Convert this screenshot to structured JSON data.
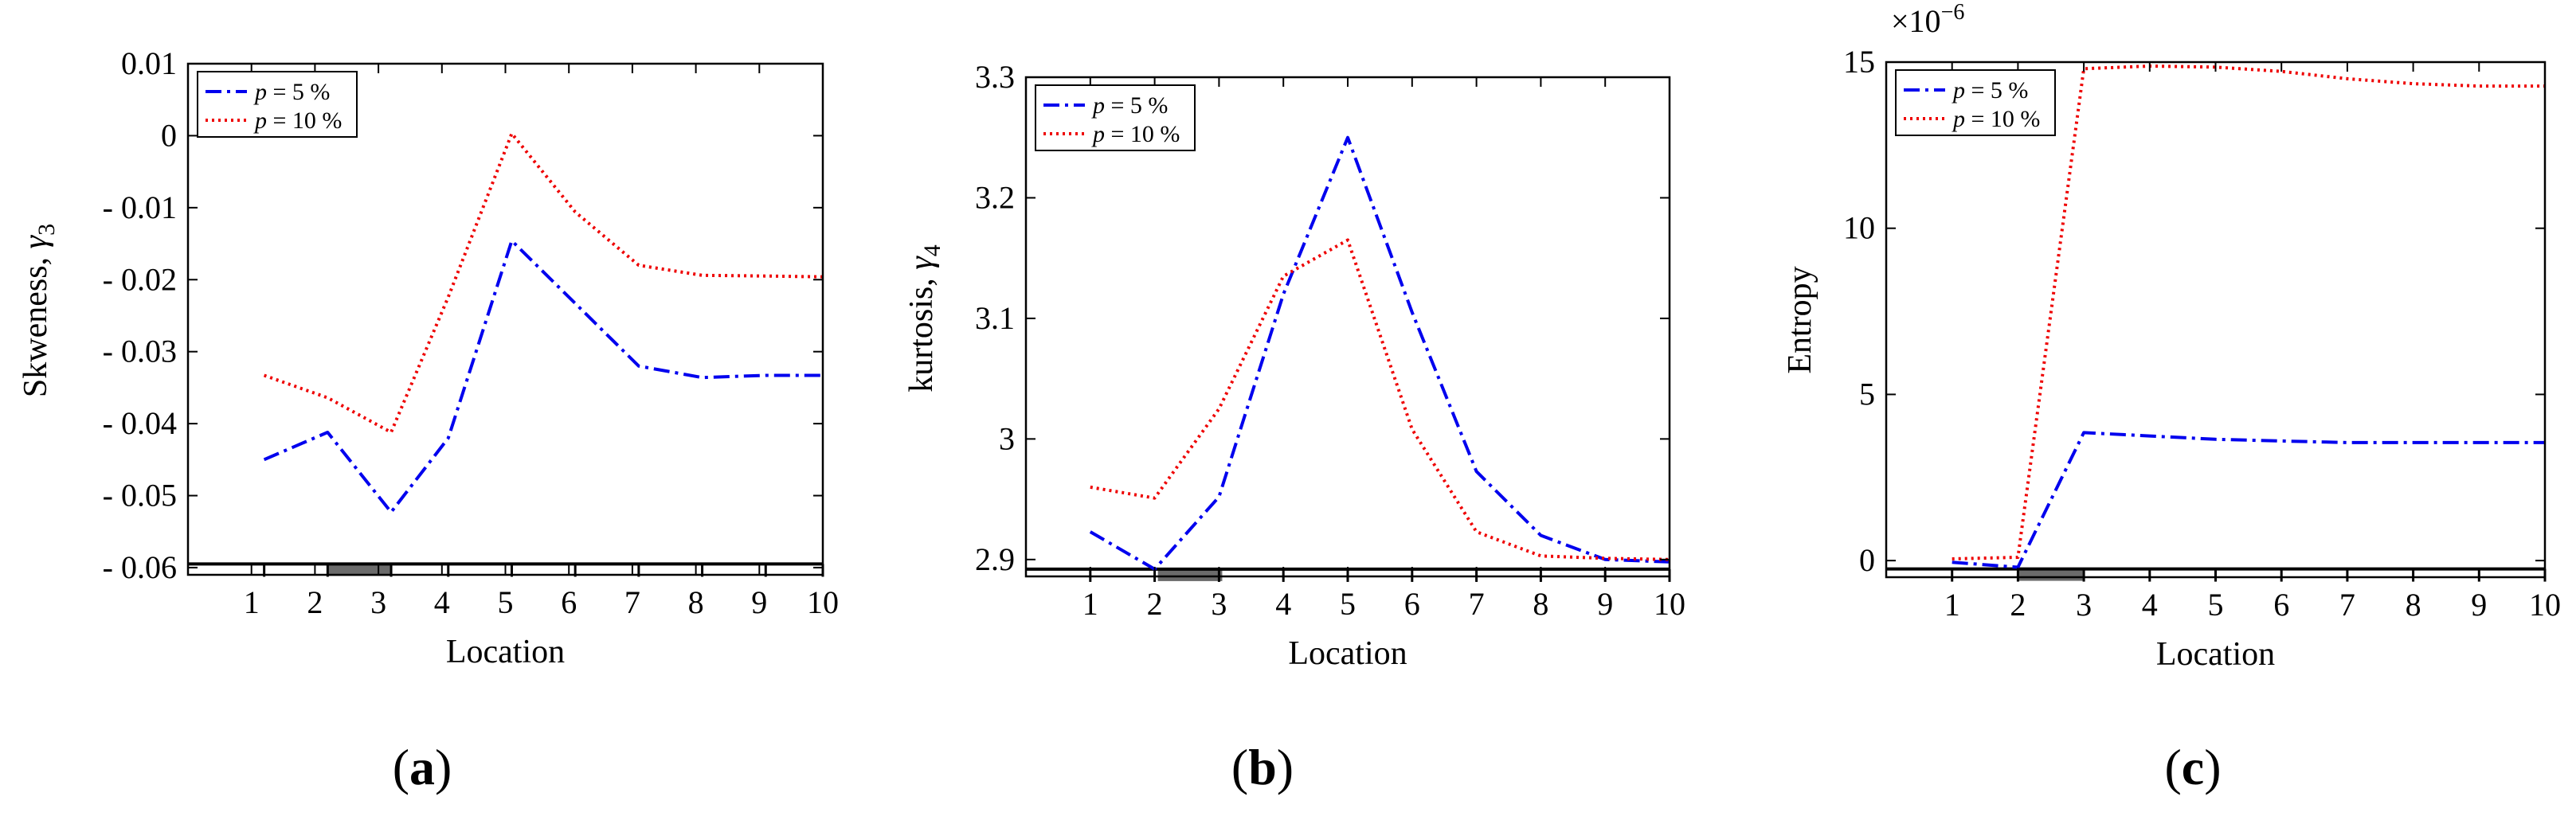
{
  "chart_data": [
    {
      "type": "line",
      "panel_label": "a",
      "title": "",
      "xlabel": "Location",
      "ylabel_main": "Skweness, ",
      "ylabel_sym": "γ",
      "ylabel_sub": "3",
      "xlim": [
        0,
        10
      ],
      "ylim": [
        -0.061,
        0.01
      ],
      "x_ticks": [
        1,
        2,
        3,
        4,
        5,
        6,
        7,
        8,
        9,
        10
      ],
      "y_ticks": [
        0.01,
        0,
        -0.01,
        -0.02,
        -0.03,
        -0.04,
        -0.05,
        -0.06
      ],
      "y_tick_labels": [
        "0.01",
        "0",
        "- 0.01",
        "- 0.02",
        "- 0.03",
        "- 0.04",
        "- 0.05",
        "- 0.06"
      ],
      "baseline": -0.0595,
      "shaded_interval": [
        2.2,
        3.2
      ],
      "legend_position": "top-left",
      "series": [
        {
          "name": "p = 5 %",
          "var": "p",
          "rest": " = 5 %",
          "color": "#0000ee",
          "dash": "20,7,4,7",
          "x": [
            1.2,
            2.2,
            3.2,
            4.1,
            5.1,
            6.1,
            7.1,
            8.1,
            9.1,
            10
          ],
          "y": [
            -0.045,
            -0.0412,
            -0.0523,
            -0.042,
            -0.0146,
            -0.0233,
            -0.032,
            -0.0336,
            -0.0333,
            -0.0333
          ]
        },
        {
          "name": "p = 10 %",
          "var": "p",
          "rest": " = 10 %",
          "color": "#ee0000",
          "dash": "3,5",
          "x": [
            1.2,
            2.2,
            3.2,
            4.1,
            5.1,
            6.1,
            7.1,
            8.1,
            9.1,
            10
          ],
          "y": [
            -0.0333,
            -0.0364,
            -0.0412,
            -0.0224,
            0.0003,
            -0.0106,
            -0.018,
            -0.0194,
            -0.0195,
            -0.0196
          ]
        }
      ]
    },
    {
      "type": "line",
      "panel_label": "b",
      "title": "",
      "xlabel": "Location",
      "ylabel_main": "kurtosis, ",
      "ylabel_sym": "γ",
      "ylabel_sub": "4",
      "xlim": [
        0,
        10
      ],
      "ylim": [
        2.886,
        3.3
      ],
      "x_ticks": [
        1,
        2,
        3,
        4,
        5,
        6,
        7,
        8,
        9,
        10
      ],
      "y_ticks": [
        3.3,
        3.2,
        3.1,
        3,
        2.9
      ],
      "y_tick_labels": [
        "3.3",
        "3.2",
        "3.1",
        "3",
        "2.9"
      ],
      "baseline": 2.892,
      "shaded_interval": [
        2.05,
        3.05
      ],
      "legend_position": "top-left",
      "series": [
        {
          "name": "p = 5 %",
          "var": "p",
          "rest": " = 5 %",
          "color": "#0000ee",
          "dash": "20,7,4,7",
          "x": [
            1,
            2,
            3,
            4,
            5,
            6,
            7,
            8,
            9,
            10
          ],
          "y": [
            2.923,
            2.892,
            2.952,
            3.12,
            3.25,
            3.105,
            2.973,
            2.92,
            2.9,
            2.898
          ]
        },
        {
          "name": "p = 10 %",
          "var": "p",
          "rest": " = 10 %",
          "color": "#ee0000",
          "dash": "3,5",
          "x": [
            1,
            2,
            3,
            4,
            5,
            6,
            7,
            8,
            9,
            10
          ],
          "y": [
            2.96,
            2.951,
            3.025,
            3.135,
            3.165,
            3.008,
            2.923,
            2.903,
            2.901,
            2.9
          ]
        }
      ]
    },
    {
      "type": "line",
      "panel_label": "c",
      "title": "",
      "xlabel": "Location",
      "ylabel_main": "Entropy",
      "ylabel_sym": "",
      "ylabel_sub": "",
      "multiplier_base": "×10",
      "multiplier_exp": "−6",
      "xlim": [
        0,
        10
      ],
      "ylim": [
        -0.5,
        15
      ],
      "x_ticks": [
        1,
        2,
        3,
        4,
        5,
        6,
        7,
        8,
        9,
        10
      ],
      "y_ticks": [
        15,
        10,
        5,
        0
      ],
      "y_tick_labels": [
        "15",
        "10",
        "5",
        "0"
      ],
      "baseline": -0.25,
      "shaded_interval": [
        2.0,
        3.0
      ],
      "legend_position": "top-left",
      "series": [
        {
          "name": "p = 5 %",
          "var": "p",
          "rest": " = 5 %",
          "color": "#0000ee",
          "dash": "20,7,4,7",
          "x": [
            1,
            2,
            3,
            4,
            5,
            6,
            7,
            8,
            9,
            10
          ],
          "y": [
            -0.05,
            -0.2,
            3.85,
            3.75,
            3.65,
            3.6,
            3.55,
            3.55,
            3.55,
            3.55
          ]
        },
        {
          "name": "p = 10 %",
          "var": "p",
          "rest": " = 10 %",
          "color": "#ee0000",
          "dash": "3,5",
          "x": [
            1,
            2,
            3,
            4,
            5,
            6,
            7,
            8,
            9,
            10
          ],
          "y": [
            0.05,
            0.1,
            14.8,
            14.88,
            14.85,
            14.72,
            14.5,
            14.35,
            14.28,
            14.28
          ]
        }
      ]
    }
  ]
}
